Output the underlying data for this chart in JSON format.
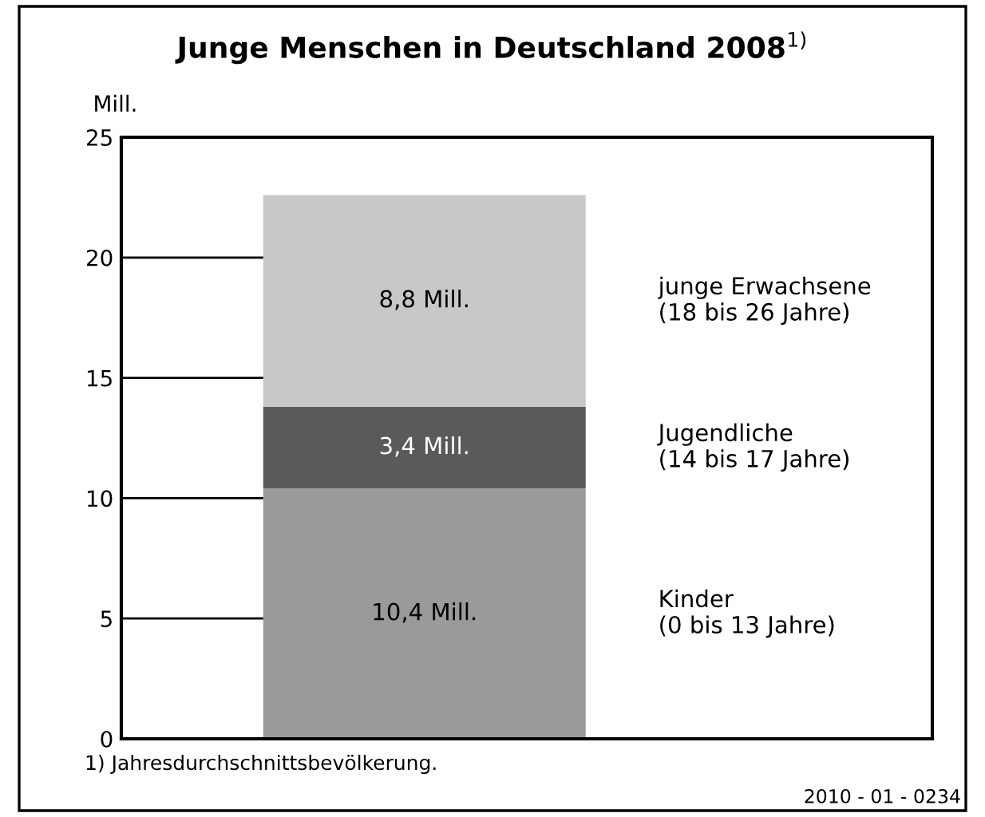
{
  "chart_data": {
    "type": "bar",
    "stacked": true,
    "title": "Junge Menschen in Deutschland 2008$^{1)}$",
    "ylabel": "Mill.",
    "categories": [
      null
    ],
    "series": [
      {
        "name": "Kinder\n(0 bis 13 Jahre)",
        "color": "#9a9a9a",
        "values": [
          10.4
        ],
        "value_labels": [
          "10,4 Mill."
        ]
      },
      {
        "name": "Jugendliche\n(14 bis 17 Jahre)",
        "color": "#5a5a5a",
        "values": [
          3.4
        ],
        "value_labels": [
          "3,4 Mill."
        ]
      },
      {
        "name": "junge Erwachsene\n(18 bis 26 Jahre)",
        "color": "#c8c8c8",
        "values": [
          8.8
        ],
        "value_labels": [
          "8,8 Mill."
        ]
      }
    ],
    "ylim": [
      0,
      25
    ],
    "yticks": [
      0,
      5,
      10,
      15,
      20,
      25
    ],
    "grid": false,
    "legend": false,
    "annotations": [
      "1) Jahresdurchschnittsbevölkerung.",
      "2010 - 01 - 0234"
    ]
  }
}
